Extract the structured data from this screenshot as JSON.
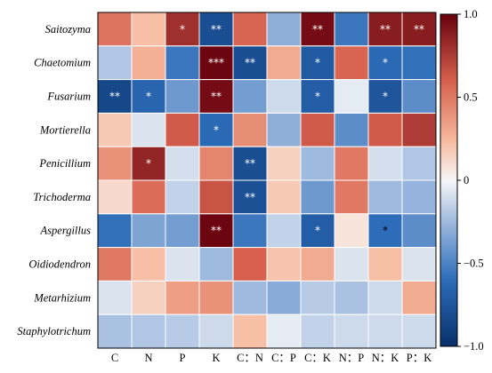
{
  "chart_data": {
    "type": "heatmap",
    "title": "",
    "rows": [
      "Saitozyma",
      "Chaetomium",
      "Fusarium",
      "Mortierella",
      "Penicillium",
      "Trichoderma",
      "Aspergillus",
      "Oidiodendron",
      "Metarhizium",
      "Staphylotrichum"
    ],
    "columns": [
      "C",
      "N",
      "P",
      "K",
      "C：N",
      "C：P",
      "C：K",
      "N：P",
      "N：K",
      "P：K"
    ],
    "values": [
      [
        0.52,
        0.22,
        0.8,
        -0.8,
        0.58,
        -0.3,
        0.95,
        -0.55,
        0.88,
        0.88
      ],
      [
        -0.2,
        0.28,
        -0.55,
        0.98,
        -0.8,
        0.3,
        -0.72,
        0.58,
        -0.62,
        -0.58
      ],
      [
        -0.85,
        -0.65,
        -0.4,
        0.95,
        -0.38,
        -0.12,
        -0.7,
        -0.05,
        -0.75,
        -0.45
      ],
      [
        0.18,
        -0.08,
        0.62,
        -0.62,
        0.42,
        -0.3,
        0.62,
        -0.45,
        0.62,
        0.75
      ],
      [
        0.4,
        0.85,
        -0.1,
        0.45,
        -0.8,
        0.15,
        -0.25,
        0.5,
        -0.1,
        -0.2
      ],
      [
        0.12,
        0.55,
        -0.15,
        0.65,
        -0.78,
        0.18,
        -0.4,
        0.5,
        -0.25,
        -0.28
      ],
      [
        -0.58,
        -0.35,
        -0.38,
        0.98,
        -0.55,
        -0.15,
        -0.7,
        0.08,
        -0.6,
        -0.45
      ],
      [
        0.5,
        0.22,
        -0.08,
        -0.25,
        0.6,
        0.2,
        0.3,
        -0.08,
        0.22,
        -0.08
      ],
      [
        -0.08,
        0.15,
        0.35,
        0.4,
        -0.25,
        -0.32,
        -0.18,
        -0.22,
        -0.12,
        0.3
      ],
      [
        -0.22,
        -0.2,
        -0.18,
        -0.12,
        0.22,
        -0.05,
        -0.15,
        -0.12,
        -0.12,
        -0.12
      ]
    ],
    "stars": [
      [
        "",
        "",
        "*",
        "**",
        "",
        "",
        "**",
        "",
        "**",
        "**"
      ],
      [
        "",
        "",
        "",
        "***",
        "**",
        "",
        "*",
        "",
        "*",
        ""
      ],
      [
        "**",
        "*",
        "",
        "**",
        "",
        "",
        "*",
        "",
        "*",
        ""
      ],
      [
        "",
        "",
        "",
        "*",
        "",
        "",
        "",
        "",
        "",
        ""
      ],
      [
        "",
        "*",
        "",
        "",
        "**",
        "",
        "",
        "",
        "",
        ""
      ],
      [
        "",
        "",
        "",
        "",
        "**",
        "",
        "",
        "",
        "",
        ""
      ],
      [
        "",
        "",
        "",
        "**",
        "",
        "",
        "*",
        "",
        "*",
        ""
      ],
      [
        "",
        "",
        "",
        "",
        "",
        "",
        "",
        "",
        "",
        ""
      ],
      [
        "",
        "",
        "",
        "",
        "",
        "",
        "",
        "",
        "",
        ""
      ],
      [
        "",
        "",
        "",
        "",
        "",
        "",
        "",
        "",
        "",
        ""
      ]
    ],
    "colorbar": {
      "min": -1.0,
      "max": 1.0,
      "ticks": [
        "1.0",
        "0.5",
        "0",
        "−0.5",
        "−1.0"
      ],
      "tick_values": [
        1.0,
        0.5,
        0,
        -0.5,
        -1.0
      ],
      "colors": {
        "neg_full": "#08306b",
        "neg_mid": "#2c6cb8",
        "neg_light": "#9fbadf",
        "zero": "#f7f7f7",
        "pos_light": "#f6b79b",
        "pos_mid": "#d6604d",
        "pos_full": "#67000d"
      }
    },
    "star_color_light": "#ffffff",
    "star_color_dark": "#000000"
  }
}
